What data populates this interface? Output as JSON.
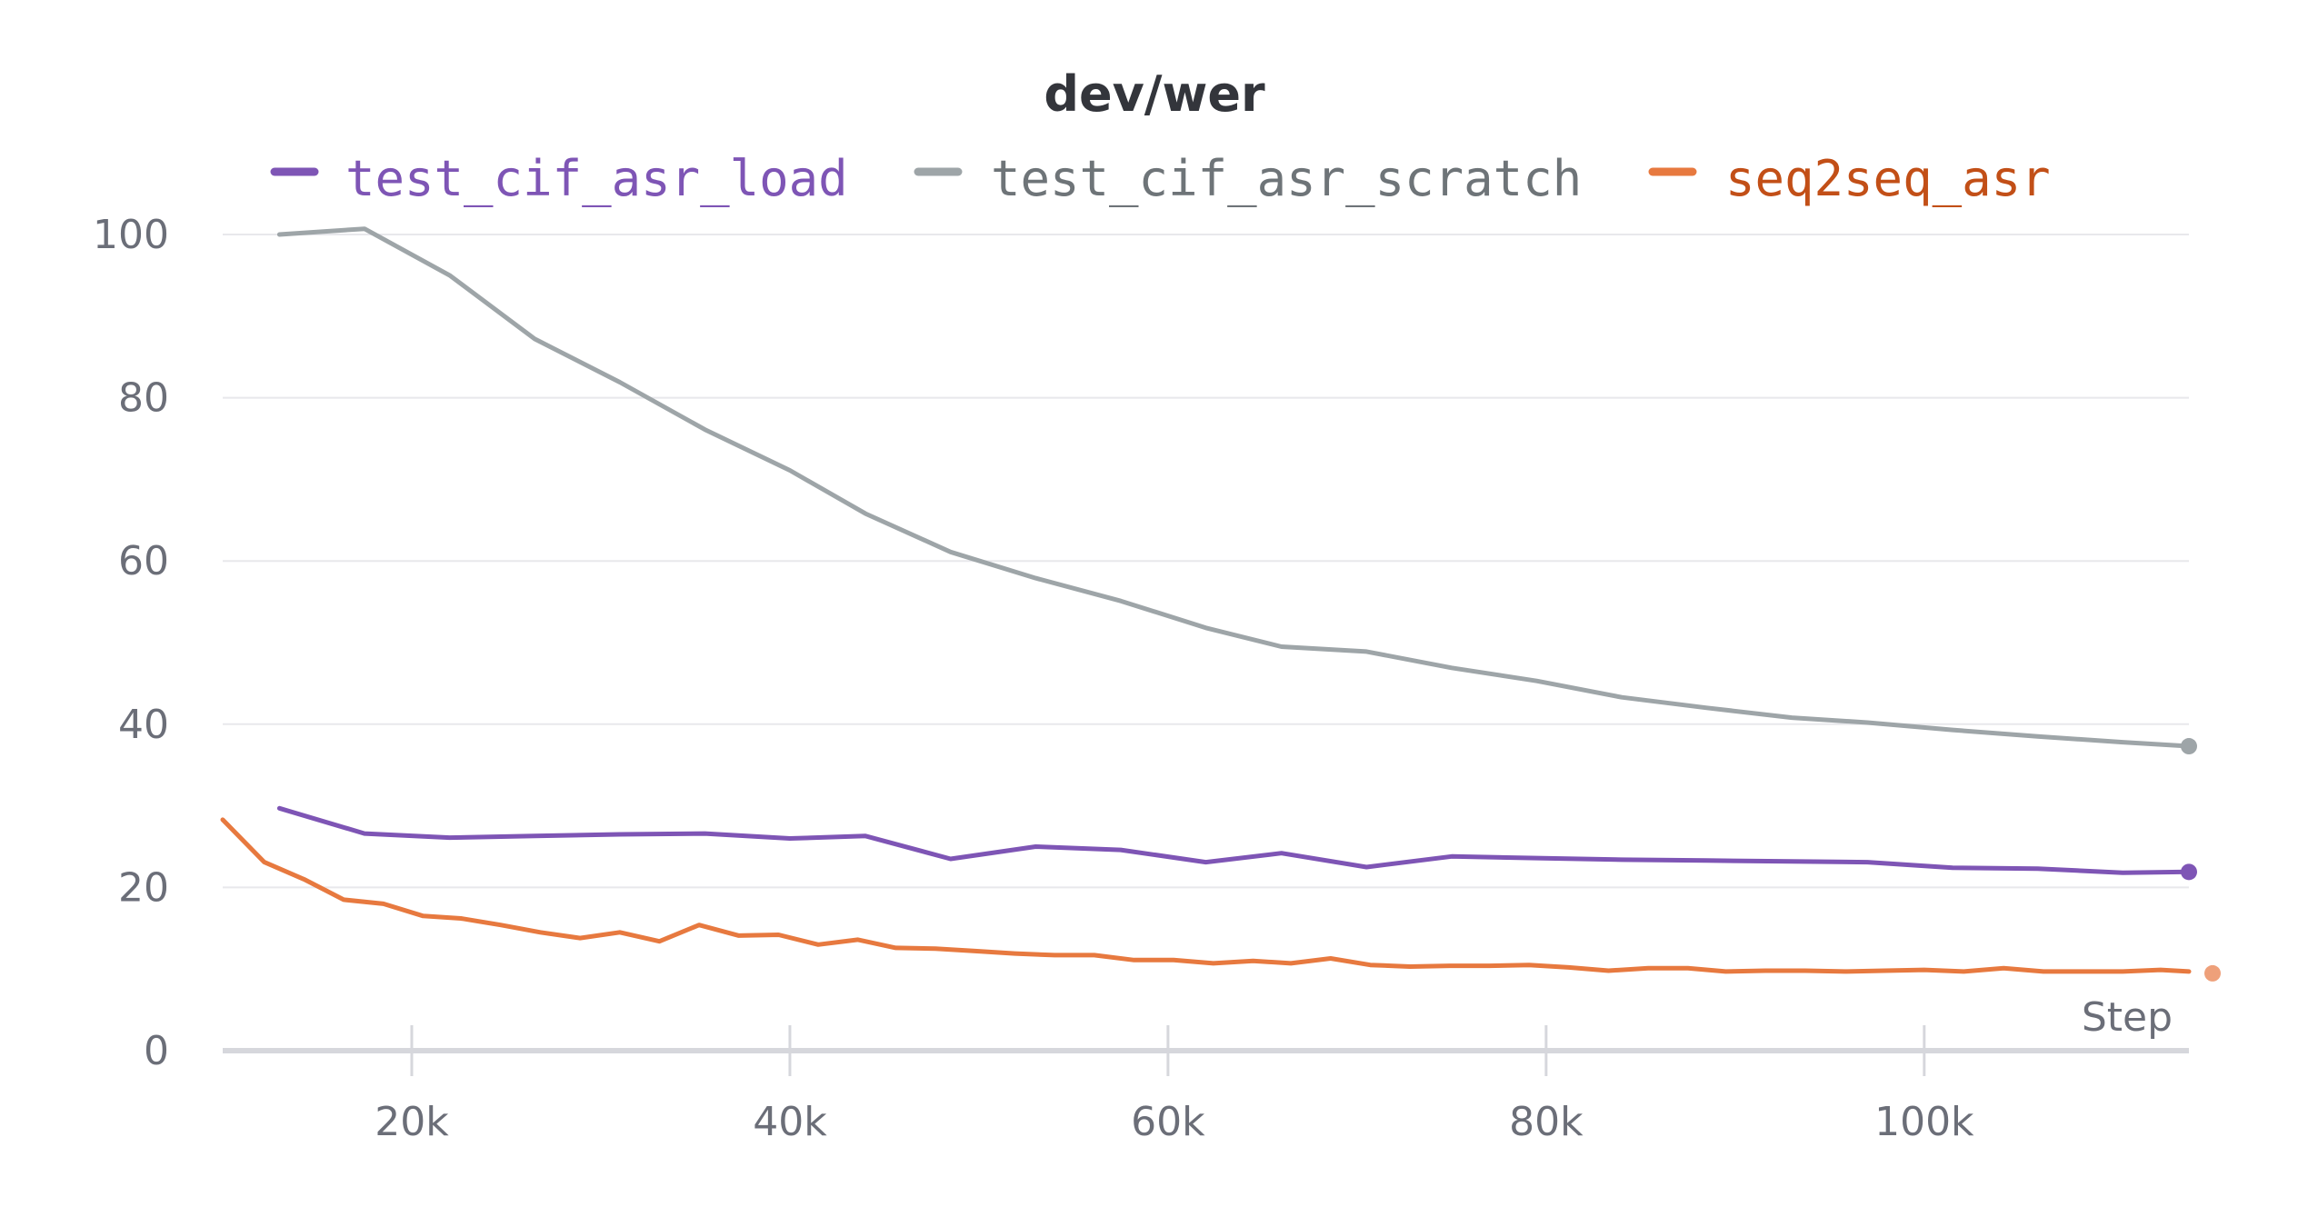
{
  "chart_data": {
    "type": "line",
    "title": "dev/wer",
    "xlabel": "Step",
    "ylabel": "",
    "xlim": [
      10000,
      114000
    ],
    "ylim": [
      0,
      100
    ],
    "x_ticks": [
      20000,
      40000,
      60000,
      80000,
      100000
    ],
    "x_tick_labels": [
      "20k",
      "40k",
      "60k",
      "80k",
      "100k"
    ],
    "y_ticks": [
      0,
      20,
      40,
      60,
      80,
      100
    ],
    "y_tick_labels": [
      "0",
      "20",
      "40",
      "60",
      "80",
      "100"
    ],
    "grid": true,
    "legend_position": "top",
    "series": [
      {
        "name": "test_cif_asr_load",
        "color": "#7e55b5",
        "text_color": "#7e55b5",
        "x": [
          13000,
          17500,
          22000,
          26500,
          31000,
          35500,
          40000,
          44000,
          48500,
          53000,
          57500,
          62000,
          66000,
          70500,
          75000,
          79500,
          84000,
          88500,
          93000,
          97000,
          101500,
          106000,
          110500,
          114000
        ],
        "y": [
          29.7,
          26.6,
          26.1,
          26.3,
          26.5,
          26.6,
          26.0,
          26.3,
          23.5,
          25.0,
          24.6,
          23.1,
          24.2,
          22.5,
          23.8,
          23.6,
          23.4,
          23.3,
          23.2,
          23.1,
          22.4,
          22.3,
          21.8,
          21.9
        ]
      },
      {
        "name": "test_cif_asr_scratch",
        "color": "#9ea5a8",
        "text_color": "#6e7478",
        "x": [
          13000,
          17500,
          22000,
          26500,
          31000,
          35500,
          40000,
          44000,
          48500,
          53000,
          57500,
          62000,
          66000,
          70500,
          75000,
          79500,
          84000,
          88500,
          93000,
          97000,
          101500,
          106000,
          110500,
          114000
        ],
        "y": [
          100.0,
          100.7,
          95.0,
          87.2,
          81.9,
          76.1,
          71.1,
          65.8,
          61.1,
          57.9,
          55.1,
          51.8,
          49.5,
          48.9,
          46.9,
          45.3,
          43.3,
          42.0,
          40.8,
          40.2,
          39.3,
          38.5,
          37.8,
          37.3
        ]
      },
      {
        "name": "seq2seq_asr",
        "color": "#e7793f",
        "text_color": "#c24f17",
        "x": [
          10000,
          12200,
          14300,
          16400,
          18500,
          20600,
          22600,
          24700,
          26800,
          28900,
          31000,
          33100,
          35200,
          37300,
          39400,
          41500,
          43600,
          45600,
          47700,
          49800,
          51900,
          54000,
          56100,
          58200,
          60300,
          62400,
          64500,
          66500,
          68600,
          70700,
          72800,
          74900,
          77000,
          79100,
          81200,
          83300,
          85400,
          87500,
          89500,
          91600,
          93700,
          95800,
          97900,
          100000,
          102100,
          104200,
          106300,
          108400,
          110500,
          112500,
          114000
        ],
        "y": [
          28.3,
          23.1,
          21.0,
          18.5,
          18.0,
          16.5,
          16.2,
          15.4,
          14.5,
          13.8,
          14.5,
          13.4,
          15.4,
          14.1,
          14.2,
          13.0,
          13.6,
          12.6,
          12.5,
          12.2,
          11.9,
          11.7,
          11.7,
          11.1,
          11.1,
          10.7,
          11.0,
          10.7,
          11.3,
          10.5,
          10.3,
          10.4,
          10.4,
          10.5,
          10.2,
          9.8,
          10.1,
          10.1,
          9.7,
          9.8,
          9.8,
          9.7,
          9.8,
          9.9,
          9.7,
          10.1,
          9.7,
          9.7,
          9.7,
          9.9,
          9.7
        ]
      }
    ]
  }
}
